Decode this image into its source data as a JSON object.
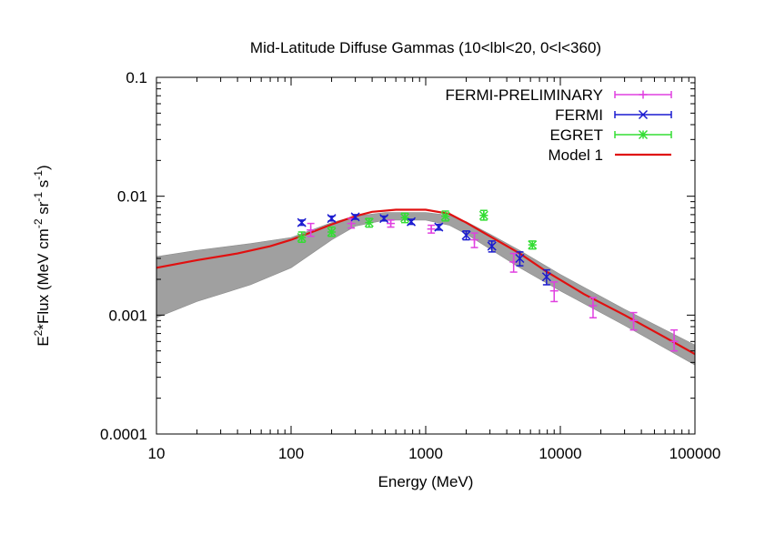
{
  "chart_data": {
    "type": "scatter",
    "title": "Mid-Latitude Diffuse Gammas (10<lbl<20, 0<l<360)",
    "xlabel": "Energy (MeV)",
    "ylabel": {
      "base": "E",
      "sup1": "2",
      "mid": "*Flux (MeV cm",
      "sup2": "-2",
      "mid2": " sr",
      "sup3": "-1",
      "mid3": " s",
      "sup4": "-1",
      "end": ")"
    },
    "xscale": "log",
    "yscale": "log",
    "xlim": [
      10,
      100000
    ],
    "ylim": [
      0.0001,
      0.1
    ],
    "xticks": [
      10,
      100,
      1000,
      10000,
      100000
    ],
    "xtick_labels": [
      "10",
      "100",
      "1000",
      "10000",
      "100000"
    ],
    "yticks": [
      0.0001,
      0.001,
      0.01,
      0.1
    ],
    "ytick_labels": [
      "0.0001",
      "0.001",
      "0.01",
      "0.1"
    ],
    "legend_position": "top-right",
    "colors": {
      "fermi_preliminary": "#e040e0",
      "fermi": "#1a1ad0",
      "egret": "#33dd33",
      "model": "#e01010",
      "band": "#a0a0a0"
    },
    "series": [
      {
        "name": "FERMI-PRELIMINARY",
        "marker": "plus",
        "color": "#e040e0",
        "points": [
          {
            "x": 140,
            "y": 0.0052,
            "lo": 0.0046,
            "hi": 0.0059
          },
          {
            "x": 280,
            "y": 0.0059,
            "lo": 0.0054,
            "hi": 0.0065
          },
          {
            "x": 550,
            "y": 0.0059,
            "lo": 0.0055,
            "hi": 0.0063
          },
          {
            "x": 1100,
            "y": 0.0053,
            "lo": 0.0049,
            "hi": 0.0057
          },
          {
            "x": 2300,
            "y": 0.0043,
            "lo": 0.0037,
            "hi": 0.0049
          },
          {
            "x": 4500,
            "y": 0.0028,
            "lo": 0.0023,
            "hi": 0.0033
          },
          {
            "x": 9000,
            "y": 0.0016,
            "lo": 0.0013,
            "hi": 0.0019
          },
          {
            "x": 17500,
            "y": 0.0012,
            "lo": 0.00095,
            "hi": 0.0014
          },
          {
            "x": 35000,
            "y": 0.0009,
            "lo": 0.00075,
            "hi": 0.00105
          },
          {
            "x": 70000,
            "y": 0.0006,
            "lo": 0.0005,
            "hi": 0.00075
          }
        ]
      },
      {
        "name": "FERMI",
        "marker": "x",
        "color": "#1a1ad0",
        "points": [
          {
            "x": 120,
            "y": 0.006,
            "lo": 0.0057,
            "hi": 0.0063
          },
          {
            "x": 200,
            "y": 0.0065,
            "lo": 0.0062,
            "hi": 0.0068
          },
          {
            "x": 300,
            "y": 0.0067,
            "lo": 0.0064,
            "hi": 0.007
          },
          {
            "x": 490,
            "y": 0.0065,
            "lo": 0.0062,
            "hi": 0.0068
          },
          {
            "x": 780,
            "y": 0.0061,
            "lo": 0.0058,
            "hi": 0.0064
          },
          {
            "x": 1250,
            "y": 0.0055,
            "lo": 0.0052,
            "hi": 0.0058
          },
          {
            "x": 2000,
            "y": 0.0047,
            "lo": 0.0043,
            "hi": 0.0051
          },
          {
            "x": 3100,
            "y": 0.0038,
            "lo": 0.0034,
            "hi": 0.0042
          },
          {
            "x": 5000,
            "y": 0.003,
            "lo": 0.0026,
            "hi": 0.0034
          },
          {
            "x": 7900,
            "y": 0.0021,
            "lo": 0.0018,
            "hi": 0.0024
          }
        ]
      },
      {
        "name": "EGRET",
        "marker": "star",
        "color": "#33dd33",
        "points": [
          {
            "x": 120,
            "y": 0.0045,
            "lo": 0.0041,
            "hi": 0.005
          },
          {
            "x": 200,
            "y": 0.005,
            "lo": 0.0046,
            "hi": 0.0055
          },
          {
            "x": 380,
            "y": 0.006,
            "lo": 0.0055,
            "hi": 0.0065
          },
          {
            "x": 700,
            "y": 0.0066,
            "lo": 0.006,
            "hi": 0.0072
          },
          {
            "x": 1400,
            "y": 0.0068,
            "lo": 0.0062,
            "hi": 0.0075
          },
          {
            "x": 2700,
            "y": 0.0069,
            "lo": 0.0063,
            "hi": 0.0076
          },
          {
            "x": 6200,
            "y": 0.0039,
            "lo": 0.0036,
            "hi": 0.0042
          }
        ]
      }
    ],
    "model": {
      "name": "Model 1",
      "color": "#e01010",
      "points": [
        {
          "x": 10,
          "y": 0.0025
        },
        {
          "x": 20,
          "y": 0.0029
        },
        {
          "x": 40,
          "y": 0.0033
        },
        {
          "x": 70,
          "y": 0.0038
        },
        {
          "x": 100,
          "y": 0.0043
        },
        {
          "x": 150,
          "y": 0.0051
        },
        {
          "x": 200,
          "y": 0.0058
        },
        {
          "x": 300,
          "y": 0.0068
        },
        {
          "x": 400,
          "y": 0.0074
        },
        {
          "x": 600,
          "y": 0.0077
        },
        {
          "x": 1000,
          "y": 0.0077
        },
        {
          "x": 1500,
          "y": 0.0071
        },
        {
          "x": 2000,
          "y": 0.006
        },
        {
          "x": 3000,
          "y": 0.0046
        },
        {
          "x": 5000,
          "y": 0.0033
        },
        {
          "x": 8000,
          "y": 0.0023
        },
        {
          "x": 15000,
          "y": 0.0015
        },
        {
          "x": 30000,
          "y": 0.001
        },
        {
          "x": 60000,
          "y": 0.00065
        },
        {
          "x": 100000,
          "y": 0.00047
        }
      ]
    },
    "band": {
      "name": "",
      "color": "#a0a0a0",
      "points": [
        {
          "x": 10,
          "lo": 0.00095,
          "hi": 0.0031
        },
        {
          "x": 20,
          "lo": 0.0013,
          "hi": 0.0035
        },
        {
          "x": 50,
          "lo": 0.0018,
          "hi": 0.004
        },
        {
          "x": 100,
          "lo": 0.0025,
          "hi": 0.0045
        },
        {
          "x": 200,
          "lo": 0.0043,
          "hi": 0.006
        },
        {
          "x": 300,
          "lo": 0.0056,
          "hi": 0.0068
        },
        {
          "x": 500,
          "lo": 0.0063,
          "hi": 0.0073
        },
        {
          "x": 1000,
          "lo": 0.0063,
          "hi": 0.0073
        },
        {
          "x": 1500,
          "lo": 0.0057,
          "hi": 0.0069
        },
        {
          "x": 2000,
          "lo": 0.0048,
          "hi": 0.0061
        },
        {
          "x": 3000,
          "lo": 0.0036,
          "hi": 0.0048
        },
        {
          "x": 5000,
          "lo": 0.0025,
          "hi": 0.0035
        },
        {
          "x": 10000,
          "lo": 0.0016,
          "hi": 0.0022
        },
        {
          "x": 30000,
          "lo": 0.00082,
          "hi": 0.00112
        },
        {
          "x": 100000,
          "lo": 0.00038,
          "hi": 0.00056
        }
      ]
    }
  }
}
